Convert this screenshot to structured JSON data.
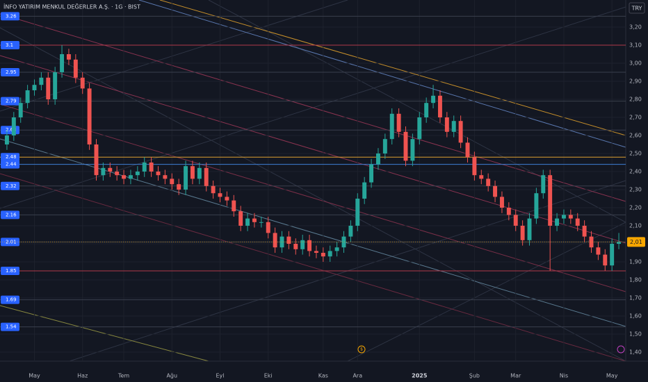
{
  "chart_data": {
    "type": "candlestick",
    "title": "İNFO YATIRIM MENKUL DEĞERLER A.Ş. · 1G · BIST",
    "currency": "TRY",
    "categories": [
      null,
      null,
      null,
      null,
      "May",
      null,
      null,
      null,
      null,
      null,
      null,
      "Haz",
      null,
      null,
      null,
      null,
      null,
      "Tem",
      null,
      null,
      null,
      null,
      null,
      null,
      "Ağu",
      null,
      null,
      null,
      null,
      null,
      null,
      "Eyl",
      null,
      null,
      null,
      null,
      null,
      null,
      "Eki",
      null,
      null,
      null,
      null,
      null,
      null,
      null,
      "Kas",
      null,
      null,
      null,
      null,
      "Ara",
      null,
      null,
      null,
      null,
      null,
      null,
      null,
      null,
      "2025",
      null,
      null,
      null,
      null,
      null,
      null,
      null,
      "Şub",
      null,
      null,
      null,
      null,
      null,
      "Mar",
      null,
      null,
      null,
      null,
      null,
      null,
      "Nis",
      null,
      null,
      null,
      null,
      null,
      null,
      "May",
      null
    ],
    "open": [
      2.55,
      2.6,
      2.7,
      2.78,
      2.85,
      2.88,
      2.92,
      2.8,
      2.95,
      3.05,
      3.02,
      2.92,
      2.86,
      2.55,
      2.38,
      2.42,
      2.4,
      2.38,
      2.36,
      2.38,
      2.4,
      2.45,
      2.4,
      2.38,
      2.36,
      2.33,
      2.3,
      2.43,
      2.36,
      2.42,
      2.32,
      2.28,
      2.26,
      2.24,
      2.18,
      2.1,
      2.14,
      2.12,
      2.12,
      2.06,
      1.98,
      2.04,
      2.0,
      1.97,
      2.02,
      1.96,
      1.95,
      1.93,
      1.96,
      1.98,
      2.04,
      2.1,
      2.25,
      2.34,
      2.44,
      2.5,
      2.58,
      2.72,
      2.62,
      2.46,
      2.58,
      2.7,
      2.78,
      2.82,
      2.7,
      2.62,
      2.68,
      2.56,
      2.48,
      2.38,
      2.36,
      2.32,
      2.26,
      2.2,
      2.16,
      2.1,
      2.02,
      2.14,
      2.28,
      2.38,
      2.1,
      2.14,
      2.16,
      2.14,
      2.1,
      2.04,
      1.98,
      1.94,
      1.88,
      2.0
    ],
    "high": [
      2.63,
      2.73,
      2.81,
      2.88,
      2.91,
      2.95,
      2.95,
      2.98,
      3.1,
      3.08,
      3.05,
      2.95,
      2.89,
      2.58,
      2.45,
      2.45,
      2.43,
      2.41,
      2.41,
      2.43,
      2.48,
      2.48,
      2.43,
      2.41,
      2.39,
      2.36,
      2.46,
      2.46,
      2.45,
      2.45,
      2.35,
      2.31,
      2.29,
      2.27,
      2.21,
      2.17,
      2.17,
      2.15,
      2.15,
      2.09,
      2.07,
      2.07,
      2.03,
      2.05,
      2.05,
      1.99,
      1.98,
      1.99,
      2.01,
      2.07,
      2.13,
      2.28,
      2.37,
      2.47,
      2.53,
      2.61,
      2.75,
      2.75,
      2.65,
      2.61,
      2.73,
      2.81,
      2.88,
      2.85,
      2.73,
      2.71,
      2.71,
      2.59,
      2.51,
      2.41,
      2.39,
      2.35,
      2.29,
      2.23,
      2.19,
      2.13,
      2.17,
      2.31,
      2.41,
      2.41,
      2.17,
      2.19,
      2.19,
      2.17,
      2.13,
      2.07,
      2.01,
      1.97,
      2.03,
      2.06
    ],
    "low": [
      2.52,
      2.57,
      2.67,
      2.75,
      2.82,
      2.85,
      2.77,
      2.77,
      2.92,
      2.99,
      2.89,
      2.83,
      2.52,
      2.35,
      2.35,
      2.37,
      2.35,
      2.33,
      2.33,
      2.35,
      2.37,
      2.37,
      2.35,
      2.33,
      2.3,
      2.27,
      2.27,
      2.33,
      2.33,
      2.29,
      2.25,
      2.23,
      2.21,
      2.15,
      2.07,
      2.07,
      2.09,
      2.09,
      2.03,
      1.95,
      1.95,
      1.97,
      1.94,
      1.94,
      1.93,
      1.92,
      1.9,
      1.9,
      1.93,
      1.95,
      2.01,
      2.07,
      2.22,
      2.31,
      2.41,
      2.47,
      2.55,
      2.59,
      2.43,
      2.43,
      2.55,
      2.67,
      2.75,
      2.67,
      2.59,
      2.59,
      2.53,
      2.45,
      2.35,
      2.33,
      2.29,
      2.23,
      2.17,
      2.13,
      2.07,
      1.99,
      1.99,
      2.11,
      2.25,
      1.85,
      2.07,
      2.11,
      2.11,
      2.07,
      2.01,
      1.95,
      1.91,
      1.85,
      1.85,
      1.97
    ],
    "close": [
      2.6,
      2.7,
      2.78,
      2.85,
      2.88,
      2.92,
      2.8,
      2.95,
      3.05,
      3.02,
      2.92,
      2.86,
      2.55,
      2.38,
      2.42,
      2.4,
      2.38,
      2.36,
      2.38,
      2.4,
      2.45,
      2.4,
      2.38,
      2.36,
      2.33,
      2.3,
      2.43,
      2.36,
      2.42,
      2.32,
      2.28,
      2.26,
      2.24,
      2.18,
      2.1,
      2.14,
      2.12,
      2.12,
      2.06,
      1.98,
      2.04,
      2.0,
      1.97,
      2.02,
      1.96,
      1.95,
      1.93,
      1.96,
      1.98,
      2.04,
      2.1,
      2.25,
      2.34,
      2.44,
      2.5,
      2.58,
      2.72,
      2.62,
      2.46,
      2.58,
      2.7,
      2.78,
      2.82,
      2.7,
      2.62,
      2.68,
      2.56,
      2.48,
      2.38,
      2.36,
      2.32,
      2.26,
      2.2,
      2.16,
      2.1,
      2.02,
      2.14,
      2.28,
      2.38,
      2.1,
      2.14,
      2.16,
      2.14,
      2.1,
      2.04,
      1.98,
      1.94,
      1.88,
      2.0,
      2.01
    ],
    "up_color": "#26a69a",
    "down_color": "#ef5350",
    "ylim": [
      1.35,
      3.35
    ],
    "yticks": [
      {
        "value": 3.2,
        "label": "3,20"
      },
      {
        "value": 3.1,
        "label": "3,10"
      },
      {
        "value": 3.0,
        "label": "3,00"
      },
      {
        "value": 2.9,
        "label": "2,90"
      },
      {
        "value": 2.8,
        "label": "2,80"
      },
      {
        "value": 2.7,
        "label": "2,70"
      },
      {
        "value": 2.6,
        "label": "2,60"
      },
      {
        "value": 2.5,
        "label": "2,50"
      },
      {
        "value": 2.4,
        "label": "2,40"
      },
      {
        "value": 2.3,
        "label": "2,30"
      },
      {
        "value": 2.2,
        "label": "2,20"
      },
      {
        "value": 2.1,
        "label": "2,10"
      },
      {
        "value": 2.0,
        "label": "2,00"
      },
      {
        "value": 1.9,
        "label": "1,90"
      },
      {
        "value": 1.8,
        "label": "1,80"
      },
      {
        "value": 1.7,
        "label": "1,70"
      },
      {
        "value": 1.6,
        "label": "1,60"
      },
      {
        "value": 1.5,
        "label": "1,50"
      },
      {
        "value": 1.4,
        "label": "1,40"
      }
    ],
    "grid": true,
    "levels": [
      3.26,
      3.1,
      2.95,
      2.79,
      2.63,
      2.48,
      2.44,
      2.32,
      2.16,
      2.01,
      1.85,
      1.69,
      1.54
    ],
    "level_colors": [
      "#3a3f4d",
      "#b2384a",
      "#3a3f4d",
      "#3a3f4d",
      "#3a3f4d",
      "#e0a030",
      "#3f7fd6",
      "#3a3f4d",
      "#3a3f4d",
      "#3a3f4d",
      "#b2384a",
      "#3a3f4d",
      "#3a3f4d"
    ],
    "last_price": {
      "value": 2.01,
      "label": "2,01"
    }
  }
}
